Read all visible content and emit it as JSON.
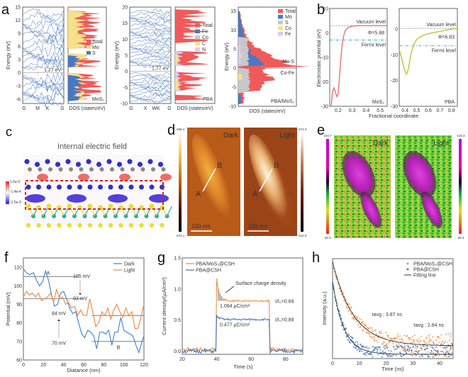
{
  "figure": {
    "panel_labels": [
      "a",
      "b",
      "c",
      "d",
      "e",
      "f",
      "g",
      "h"
    ]
  },
  "chart_data": [
    {
      "id": "a1",
      "type": "band_structure_dos",
      "material": "MoS2",
      "material_label": "MoS₂",
      "ylabel": "Energy (eV)",
      "ylim": [
        -7,
        15
      ],
      "yticks": [
        -6,
        -3,
        0,
        3,
        6,
        9,
        12,
        15
      ],
      "kpoints": [
        "G",
        "M",
        "K",
        "G"
      ],
      "xlabel_dos": "DOS (states/eV)",
      "bandgap_label": "1.27 eV",
      "bandgap": 1.27,
      "legend": [
        "Total",
        "Mo",
        "S"
      ],
      "colors": {
        "Total": "#f05a5a",
        "Mo": "#f7e08a",
        "S": "#4a78c0",
        "bands": "#4f7fc8"
      }
    },
    {
      "id": "a2",
      "type": "band_structure_dos",
      "material": "PBA",
      "material_label": "PBA",
      "ylabel": "Energy (eV)",
      "ylim": [
        -10,
        20
      ],
      "yticks": [
        -10,
        -5,
        0,
        5,
        10,
        15,
        20
      ],
      "kpoints": [
        "G",
        "X",
        "WK",
        "G"
      ],
      "xlabel_dos": "DOS (states/eV)",
      "bandgap_label": "1.77 eV",
      "bandgap": 1.77,
      "legend": [
        "Total",
        "Fe",
        "Co",
        "C",
        "N"
      ],
      "colors": {
        "Total": "#f05a5a",
        "Fe": "#4a78c0",
        "Co": "#c8c8c8",
        "C": "#f7e08a",
        "N": "#dcc8f0"
      }
    },
    {
      "id": "a3",
      "type": "dos",
      "material": "PBA/MoS2",
      "material_label": "PBA/MoS₂",
      "ylabel": "Energy (eV)",
      "ylim": [
        -10,
        16
      ],
      "yticks": [
        -10,
        -5,
        0,
        5,
        10,
        15
      ],
      "xlabel": "DOS (states/eV)",
      "legend": [
        "Total",
        "Mo",
        "S",
        "Co",
        "Fe"
      ],
      "annotations": [
        "Mo-S",
        "Co-Fe"
      ],
      "colors": {
        "Total": "#f05a5a",
        "Mo": "#4a78c0",
        "S": "#c8c8c8",
        "Co": "#f7e08a",
        "Fe": "#dcc8f0"
      }
    },
    {
      "id": "b",
      "type": "line",
      "ylabel": "Electrostatic potential (eV)",
      "xlabel": "Fractional coordinate",
      "subplots": [
        {
          "material_label": "MoS₂",
          "xlim": [
            0.14,
            0.55
          ],
          "xticks": [
            0.2,
            0.3,
            0.4,
            0.5
          ],
          "ylim": [
            -30,
            10
          ],
          "yticks": [
            -30,
            -20,
            -10,
            0,
            10
          ],
          "vacuum_level": 3,
          "fermi_level": -2.9,
          "work_function_label": "Φ=5.88",
          "work_function": 5.88,
          "vacuum_label": "Vacuum level",
          "fermi_label": "Fermi level",
          "color": "#f07070",
          "x": [
            0.15,
            0.16,
            0.17,
            0.18,
            0.19,
            0.2,
            0.21,
            0.22,
            0.23,
            0.24,
            0.25,
            0.27,
            0.3,
            0.35,
            0.4,
            0.45,
            0.5,
            0.55
          ],
          "y": [
            -30,
            -24,
            -22.5,
            -24,
            -26,
            -25,
            -18,
            -10,
            -4,
            -1,
            0.8,
            2.2,
            2.8,
            3.0,
            3.0,
            3.0,
            3.0,
            3.0
          ]
        },
        {
          "material_label": "PBA",
          "xlim": [
            0.35,
            0.85
          ],
          "xticks": [
            0.4,
            0.5,
            0.6,
            0.7,
            0.8
          ],
          "ylim": [
            -30,
            8
          ],
          "yticks": [
            -30,
            -20,
            -10,
            0
          ],
          "vacuum_level": 0.3,
          "fermi_level": -6.5,
          "work_function_label": "Φ=6.83",
          "work_function": 6.83,
          "vacuum_label": "Vacuum level",
          "fermi_label": "Fermi level",
          "color": "#b8c832",
          "x": [
            0.35,
            0.37,
            0.39,
            0.41,
            0.42,
            0.43,
            0.45,
            0.47,
            0.5,
            0.55,
            0.6,
            0.65,
            0.7,
            0.75,
            0.8,
            0.85
          ],
          "y": [
            -8,
            -11,
            -15,
            -17.5,
            -17,
            -15,
            -10,
            -6.5,
            -4,
            -2.5,
            -1.8,
            -1.3,
            -0.9,
            -0.4,
            0.0,
            0.3
          ]
        }
      ]
    },
    {
      "id": "c",
      "type": "image",
      "title": "Internal electric field",
      "colorbar_labels": [
        "1.5e-3",
        "-1.4e-4",
        "-1.5e-3"
      ],
      "colors": {
        "positive": "#e8302a",
        "negative": "#2a10d0",
        "S": "#e8e030",
        "Mo": "#30a8a0",
        "C": "#888888",
        "N": "#3030d0"
      }
    },
    {
      "id": "d",
      "type": "image",
      "images": [
        {
          "label": "Dark",
          "scale_bar": "100 nm",
          "points": [
            "A",
            "B"
          ]
        },
        {
          "label": "Light",
          "scale_bar": "100 nm",
          "points": [
            "A",
            "B"
          ]
        }
      ],
      "colorbar_left": {
        "max": "-298.4",
        "min": "-423.1",
        "unit": "nm"
      },
      "colorbar_right": {
        "max": "-274.4",
        "min": "-416.0",
        "unit": "nm"
      }
    },
    {
      "id": "e",
      "type": "image",
      "images": [
        {
          "label": "Dark"
        },
        {
          "label": "Light"
        }
      ],
      "colorbar_left": {
        "max": "104.7",
        "min": "49.3",
        "unit": "mV"
      },
      "colorbar_right": {
        "max": "119.3",
        "min": "60.3",
        "unit": "mV"
      }
    },
    {
      "id": "f",
      "type": "line",
      "xlabel": "Diatance (nm)",
      "ylabel": "Potential (mV)",
      "xlim": [
        0,
        120
      ],
      "ylim": [
        60,
        115
      ],
      "xticks": [
        0,
        20,
        40,
        60,
        80,
        100,
        120
      ],
      "yticks": [
        60,
        70,
        80,
        90,
        100,
        110
      ],
      "legend_position": "top-right",
      "series": [
        {
          "name": "Dark",
          "color": "#4a8ad0",
          "x": [
            0,
            3,
            6,
            10,
            13,
            16,
            19,
            22,
            25,
            28,
            31,
            34,
            37,
            40,
            43,
            46,
            49,
            52,
            55,
            58,
            61,
            64,
            67,
            70,
            73,
            76,
            79,
            82,
            85,
            88,
            91,
            94,
            97,
            100,
            103,
            106,
            109,
            112,
            115,
            118,
            120
          ],
          "y": [
            109,
            107,
            106,
            107,
            103,
            100,
            102,
            108,
            103,
            95,
            89,
            90,
            96,
            97,
            93,
            88,
            85,
            86,
            80,
            74,
            72,
            76,
            75,
            73,
            66,
            75,
            75,
            74,
            76,
            68,
            75,
            75,
            83,
            76,
            75,
            74,
            73,
            68,
            64,
            70,
            73
          ]
        },
        {
          "name": "Light",
          "color": "#f0904a",
          "x": [
            0,
            3,
            6,
            9,
            12,
            15,
            18,
            21,
            24,
            27,
            30,
            33,
            36,
            39,
            42,
            45,
            48,
            51,
            54,
            57,
            60,
            63,
            66,
            69,
            72,
            75,
            78,
            81,
            84,
            87,
            90,
            93,
            96,
            99,
            102,
            105,
            108,
            111,
            114,
            117,
            120
          ],
          "y": [
            94,
            97,
            95,
            96,
            94,
            96,
            92,
            93,
            94,
            96,
            91,
            98,
            93,
            94,
            90,
            91,
            88,
            89,
            84,
            87,
            84,
            84,
            93,
            86,
            78,
            80,
            86,
            84,
            88,
            82,
            87,
            90,
            86,
            83,
            88,
            84,
            86,
            77,
            77,
            83,
            90
          ]
        }
      ],
      "reference_lines": [
        {
          "value": 105,
          "label": "105 mV",
          "x_from": 0,
          "x_to": 55
        },
        {
          "value": 93,
          "label": "93 mV",
          "x_from": 0,
          "x_to": 60
        },
        {
          "value": 84,
          "label": "84 mV",
          "x_from": 68,
          "x_to": 120
        },
        {
          "value": 70,
          "label": "70 mV",
          "x_from": 68,
          "x_to": 120
        }
      ],
      "annotations": [
        "A",
        "B"
      ]
    },
    {
      "id": "g",
      "type": "line",
      "xlabel": "Time (s)",
      "ylabel": "Current density/(μA/cm²)",
      "xlim": [
        20,
        90
      ],
      "ylim": [
        -0.05,
        1.5
      ],
      "xticks": [
        20,
        40,
        60,
        80
      ],
      "yticks": [
        0.0,
        0.5,
        1.0,
        1.5
      ],
      "legend_position": "top-left",
      "series": [
        {
          "name": "PBA/MoS₂@CSH",
          "color": "#f0904a",
          "on": 40,
          "off": 71,
          "peak": 1.16,
          "plateau": 0.81,
          "baseline": 0.03
        },
        {
          "name": "PBA@CSH",
          "color": "#4a78c0",
          "on": 40,
          "off": 71,
          "peak": 0.57,
          "plateau": 0.51,
          "baseline": 0.0
        }
      ],
      "annotations": [
        {
          "text": "Surface charge density"
        },
        {
          "text": "1.094 μC/cm²",
          "value": 1.094
        },
        {
          "text": "0.477 μC/cm²",
          "value": 0.477
        },
        {
          "text": "I/I₀=0.69",
          "value": 0.69
        },
        {
          "text": "I/I₀=0.89",
          "value": 0.89
        }
      ]
    },
    {
      "id": "h",
      "type": "scatter",
      "xlabel": "Time (ns)",
      "ylabel": "Intensity (a.u.)",
      "xlim": [
        0,
        45
      ],
      "xticks": [
        0,
        10,
        20,
        30,
        40
      ],
      "legend_position": "top-right",
      "series": [
        {
          "name": "PBA/MoS₂@CSH",
          "color": "#f0904a",
          "tau_label": "τavg : 3.87 ns",
          "tau": 3.87
        },
        {
          "name": "PBA@CSH",
          "color": "#4a78c0",
          "tau_label": "τavg : 2.64 ns",
          "tau": 2.64
        },
        {
          "name": "Fitting line",
          "color": "#333333"
        }
      ]
    }
  ]
}
